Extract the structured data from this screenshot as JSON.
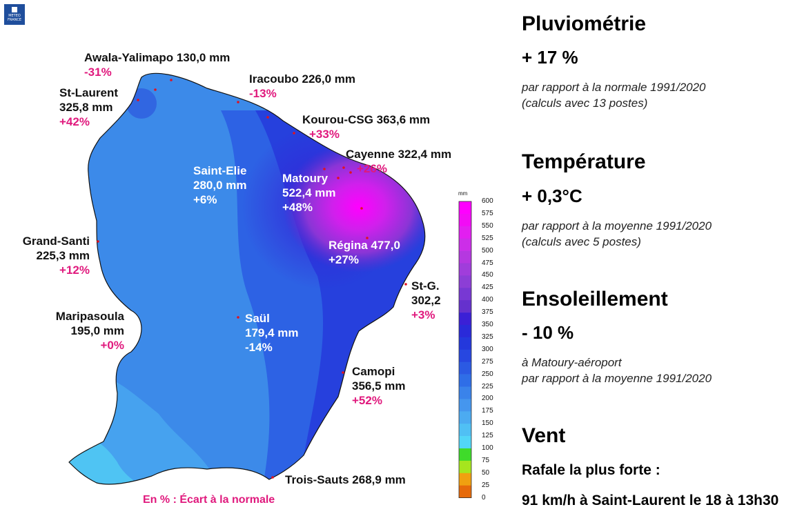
{
  "logo": {
    "text": "METEO FRANCE"
  },
  "stations": [
    {
      "id": "awala",
      "name_value": "Awala-Yalimapo 130,0 mm",
      "deviation": "-31%"
    },
    {
      "id": "iracoubo",
      "name_value": "Iracoubo 226,0 mm",
      "deviation": "-13%"
    },
    {
      "id": "st-laurent",
      "name": "St-Laurent",
      "value": "325,8 mm",
      "deviation": "+42%"
    },
    {
      "id": "kourou",
      "name_value": "Kourou-CSG 363,6 mm",
      "deviation": "+33%"
    },
    {
      "id": "cayenne",
      "name_value": "Cayenne 322,4 mm",
      "deviation": "+26%"
    },
    {
      "id": "saint-elie",
      "name": "Saint-Elie",
      "value": "280,0 mm",
      "deviation": "+6%"
    },
    {
      "id": "matoury",
      "name": "Matoury",
      "value": "522,4 mm",
      "deviation": "+48%"
    },
    {
      "id": "grand-santi",
      "name": "Grand-Santi",
      "value": "225,3 mm",
      "deviation": "+12%"
    },
    {
      "id": "regina",
      "name_value": "Régina 477,0",
      "deviation": "+27%"
    },
    {
      "id": "st-g",
      "name": "St-G.",
      "value": "302,2",
      "deviation": "+3%"
    },
    {
      "id": "maripasoula",
      "name": "Maripasoula",
      "value": "195,0 mm",
      "deviation": "+0%"
    },
    {
      "id": "saul",
      "name": "Saül",
      "value": "179,4 mm",
      "deviation": "-14%"
    },
    {
      "id": "camopi",
      "name": "Camopi",
      "value": "356,5 mm",
      "deviation": "+52%"
    },
    {
      "id": "trois-sauts",
      "name_value": "Trois-Sauts 268,9 mm"
    }
  ],
  "legend_note": "En % : Écart à la normale",
  "color_scale": {
    "unit": "mm",
    "ticks": [
      "600",
      "575",
      "550",
      "525",
      "500",
      "475",
      "450",
      "425",
      "400",
      "375",
      "350",
      "325",
      "300",
      "275",
      "250",
      "225",
      "200",
      "175",
      "150",
      "125",
      "100",
      "75",
      "50",
      "25",
      "0"
    ],
    "colors": [
      "#ff00ff",
      "#f20cf5",
      "#e21ff0",
      "#cc2ee8",
      "#b538e0",
      "#a03ddb",
      "#8c3ed6",
      "#7838d3",
      "#6531cd",
      "#3b20d6",
      "#2a2ad9",
      "#2438dc",
      "#2747e0",
      "#2b5ae3",
      "#2f6ee7",
      "#3a83ea",
      "#4596ee",
      "#4cabf1",
      "#50c0f4",
      "#52d6f7",
      "#3fdb2a",
      "#a6e51e",
      "#f0a010",
      "#e66a0a",
      "#b01a0a"
    ]
  },
  "panels": {
    "rain": {
      "title": "Pluviométrie",
      "value": "+ 17 %",
      "note1": "par rapport à la normale 1991/2020",
      "note2": "(calculs avec 13 postes)"
    },
    "temperature": {
      "title": "Température",
      "value": "+ 0,3°C",
      "note1": "par rapport à la moyenne 1991/2020",
      "note2": "(calculs avec 5 postes)"
    },
    "sunshine": {
      "title": "Ensoleillement",
      "value": "- 10 %",
      "note1": "à Matoury-aéroport",
      "note2": "par rapport à la moyenne 1991/2020"
    },
    "wind": {
      "title": "Vent",
      "subtitle": "Rafale la plus forte :",
      "value": "91 km/h à Saint-Laurent le 18 à 13h30"
    }
  }
}
